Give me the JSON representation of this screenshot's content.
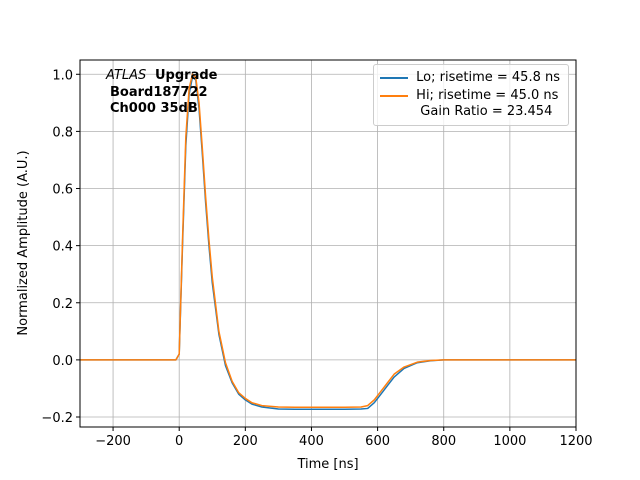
{
  "chart_data": {
    "type": "line",
    "xlabel": "Time [ns]",
    "ylabel": "Normalized Amplitude (A.U.)",
    "annotation": [
      "ATLAS",
      "Upgrade",
      "Board187722",
      "Ch000 35dB"
    ],
    "x": [
      -300,
      -50,
      -10,
      0,
      10,
      20,
      30,
      40,
      50,
      60,
      70,
      80,
      90,
      100,
      120,
      140,
      160,
      180,
      200,
      220,
      250,
      300,
      350,
      400,
      450,
      500,
      550,
      570,
      590,
      610,
      630,
      650,
      680,
      720,
      760,
      800,
      900,
      1000,
      1200
    ],
    "series": [
      {
        "name": "Lo; risetime = 45.8 ns",
        "color": "#1f77b4",
        "values": [
          0,
          0,
          0,
          0.02,
          0.4,
          0.75,
          0.93,
          0.99,
          0.98,
          0.88,
          0.72,
          0.55,
          0.4,
          0.27,
          0.09,
          -0.02,
          -0.08,
          -0.12,
          -0.14,
          -0.155,
          -0.165,
          -0.172,
          -0.173,
          -0.173,
          -0.173,
          -0.173,
          -0.172,
          -0.17,
          -0.15,
          -0.12,
          -0.09,
          -0.06,
          -0.03,
          -0.01,
          -0.003,
          0,
          0,
          0,
          0
        ]
      },
      {
        "name": "Hi; risetime = 45.0 ns\n Gain Ratio = 23.454",
        "color": "#ff7f0e",
        "values": [
          0,
          0,
          0,
          0.02,
          0.42,
          0.78,
          0.95,
          1.0,
          0.99,
          0.9,
          0.74,
          0.57,
          0.42,
          0.29,
          0.1,
          -0.01,
          -0.075,
          -0.115,
          -0.135,
          -0.15,
          -0.16,
          -0.165,
          -0.166,
          -0.166,
          -0.166,
          -0.166,
          -0.165,
          -0.16,
          -0.14,
          -0.11,
          -0.08,
          -0.05,
          -0.025,
          -0.008,
          -0.002,
          0,
          0,
          0,
          0
        ]
      }
    ],
    "xlim": [
      -300,
      1200
    ],
    "xticks": [
      {
        "value": -200,
        "label": "−200"
      },
      0,
      200,
      400,
      600,
      800,
      1000,
      1200
    ],
    "ylim": [
      -0.235,
      1.05
    ],
    "yticks": [
      {
        "value": -0.2,
        "label": "−0.2"
      },
      {
        "value": 0,
        "label": "0.0"
      },
      0.2,
      0.4,
      0.6,
      0.8,
      {
        "value": 1,
        "label": "1.0"
      }
    ],
    "grid": true,
    "legend": "upper right"
  }
}
